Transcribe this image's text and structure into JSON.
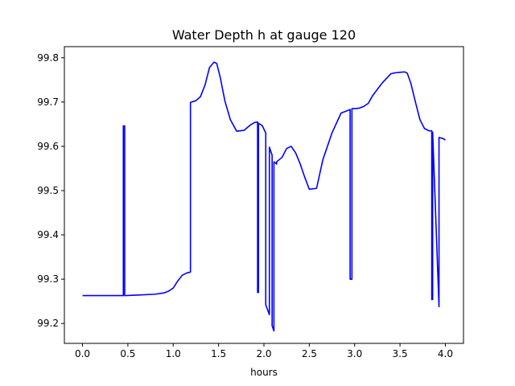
{
  "chart_data": {
    "type": "line",
    "title": "Water Depth h at gauge 120",
    "xlabel": "hours",
    "ylabel": "",
    "xlim": [
      -0.2,
      4.2
    ],
    "ylim": [
      99.155,
      99.825
    ],
    "xticks": [
      0.0,
      0.5,
      1.0,
      1.5,
      2.0,
      2.5,
      3.0,
      3.5,
      4.0
    ],
    "xtick_labels": [
      "0.0",
      "0.5",
      "1.0",
      "1.5",
      "2.0",
      "2.5",
      "3.0",
      "3.5",
      "4.0"
    ],
    "yticks": [
      99.2,
      99.3,
      99.4,
      99.5,
      99.6,
      99.7,
      99.8
    ],
    "ytick_labels": [
      "99.2",
      "99.3",
      "99.4",
      "99.5",
      "99.6",
      "99.7",
      "99.8"
    ],
    "grid": false,
    "series": [
      {
        "color": "#0000ff",
        "x": [
          0.0,
          0.45,
          0.45,
          0.465,
          0.465,
          0.475,
          0.475,
          0.6,
          0.8,
          0.9,
          0.95,
          1.0,
          1.05,
          1.1,
          1.15,
          1.19,
          1.19,
          1.25,
          1.3,
          1.35,
          1.4,
          1.45,
          1.48,
          1.52,
          1.57,
          1.63,
          1.7,
          1.78,
          1.85,
          1.9,
          1.93,
          1.93,
          1.94,
          1.94,
          1.98,
          2.02,
          2.02,
          2.06,
          2.06,
          2.09,
          2.09,
          2.11,
          2.11,
          2.14,
          2.14,
          2.2,
          2.25,
          2.3,
          2.35,
          2.4,
          2.45,
          2.5,
          2.58,
          2.65,
          2.75,
          2.85,
          2.95,
          2.95,
          2.97,
          2.97,
          3.0,
          3.05,
          3.1,
          3.15,
          3.2,
          3.3,
          3.4,
          3.45,
          3.5,
          3.55,
          3.58,
          3.62,
          3.67,
          3.72,
          3.77,
          3.82,
          3.85,
          3.85,
          3.86,
          3.86,
          3.93,
          3.93,
          3.98,
          4.0
        ],
        "y": [
          99.263,
          99.263,
          99.646,
          99.646,
          99.263,
          99.263,
          99.263,
          99.264,
          99.266,
          99.269,
          99.273,
          99.28,
          99.296,
          99.309,
          99.314,
          99.316,
          99.699,
          99.703,
          99.712,
          99.738,
          99.778,
          99.79,
          99.787,
          99.754,
          99.702,
          99.66,
          99.634,
          99.636,
          99.648,
          99.654,
          99.655,
          99.27,
          99.27,
          99.652,
          99.647,
          99.63,
          99.242,
          99.22,
          99.598,
          99.58,
          99.195,
          99.183,
          99.565,
          99.56,
          99.565,
          99.575,
          99.595,
          99.6,
          99.585,
          99.56,
          99.53,
          99.503,
          99.505,
          99.57,
          99.63,
          99.675,
          99.683,
          99.3,
          99.3,
          99.685,
          99.685,
          99.686,
          99.69,
          99.697,
          99.715,
          99.742,
          99.764,
          99.766,
          99.767,
          99.768,
          99.765,
          99.742,
          99.7,
          99.66,
          99.64,
          99.635,
          99.635,
          99.254,
          99.254,
          99.632,
          99.238,
          99.62,
          99.617,
          99.614
        ]
      }
    ]
  }
}
